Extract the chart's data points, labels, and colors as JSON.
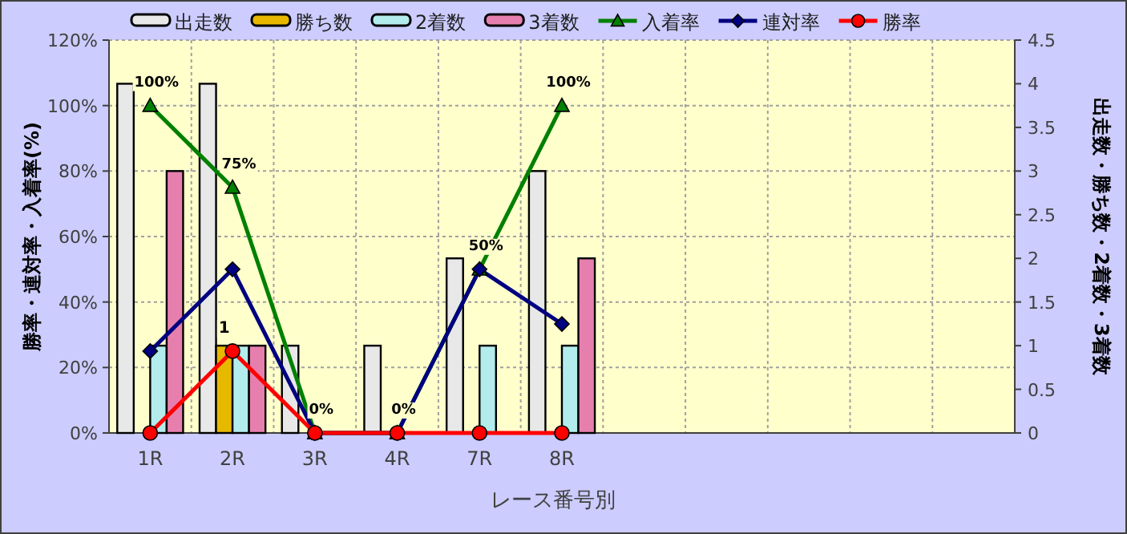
{
  "chart_data": {
    "type": "bar",
    "xlabel": "レース番号別",
    "ylabel": "勝率・連対率・入着率(%)",
    "y2label": "出走数・勝ち数・2着数・3着数",
    "categories": [
      "1R",
      "2R",
      "3R",
      "4R",
      "7R",
      "8R",
      null,
      null,
      null,
      null,
      null
    ],
    "ylim": [
      0,
      120
    ],
    "yticks": [
      {
        "value": 0,
        "label": "0%"
      },
      {
        "value": 20,
        "label": "20%"
      },
      {
        "value": 40,
        "label": "40%"
      },
      {
        "value": 60,
        "label": "60%"
      },
      {
        "value": 80,
        "label": "80%"
      },
      {
        "value": 100,
        "label": "100%"
      },
      {
        "value": 120,
        "label": "120%"
      }
    ],
    "y2lim": [
      0,
      4.5
    ],
    "y2ticks": [
      0,
      0.5,
      1,
      1.5,
      2,
      2.5,
      3,
      3.5,
      4,
      4.5
    ],
    "grid": true,
    "legend": "top",
    "series": [
      {
        "name": "出走数",
        "axis": "y2",
        "color": "#e8e8e8",
        "values": [
          4,
          4,
          1,
          1,
          2,
          3,
          null,
          null,
          null,
          null,
          null
        ]
      },
      {
        "name": "勝ち数",
        "axis": "y2",
        "color": "#e6b800",
        "values": [
          0,
          1,
          0,
          0,
          0,
          0,
          null,
          null,
          null,
          null,
          null
        ],
        "value_labels": [
          null,
          "1",
          null,
          null,
          null,
          null,
          null,
          null,
          null,
          null,
          null
        ]
      },
      {
        "name": "2着数",
        "axis": "y2",
        "color": "#b3ecec",
        "values": [
          1,
          1,
          0,
          0,
          1,
          1,
          null,
          null,
          null,
          null,
          null
        ]
      },
      {
        "name": "3着数",
        "axis": "y2",
        "color": "#e67fad",
        "values": [
          3,
          1,
          0,
          0,
          0,
          2,
          null,
          null,
          null,
          null,
          null
        ]
      },
      {
        "name": "入着率",
        "type": "line",
        "color": "#008000",
        "marker": "triangle",
        "values": [
          100,
          75,
          0,
          0,
          50,
          100,
          null,
          null,
          null,
          null,
          null
        ],
        "value_labels": [
          "100%",
          "75%",
          "0%",
          "0%",
          "50%",
          "100%",
          null,
          null,
          null,
          null,
          null
        ]
      },
      {
        "name": "連対率",
        "type": "line",
        "color": "#000080",
        "marker": "diamond",
        "values": [
          25,
          50,
          0,
          0,
          50,
          33.3,
          null,
          null,
          null,
          null,
          null
        ]
      },
      {
        "name": "勝率",
        "type": "line",
        "color": "#ff0000",
        "marker": "circle",
        "values": [
          0,
          25,
          0,
          0,
          0,
          0,
          null,
          null,
          null,
          null,
          null
        ]
      }
    ]
  }
}
